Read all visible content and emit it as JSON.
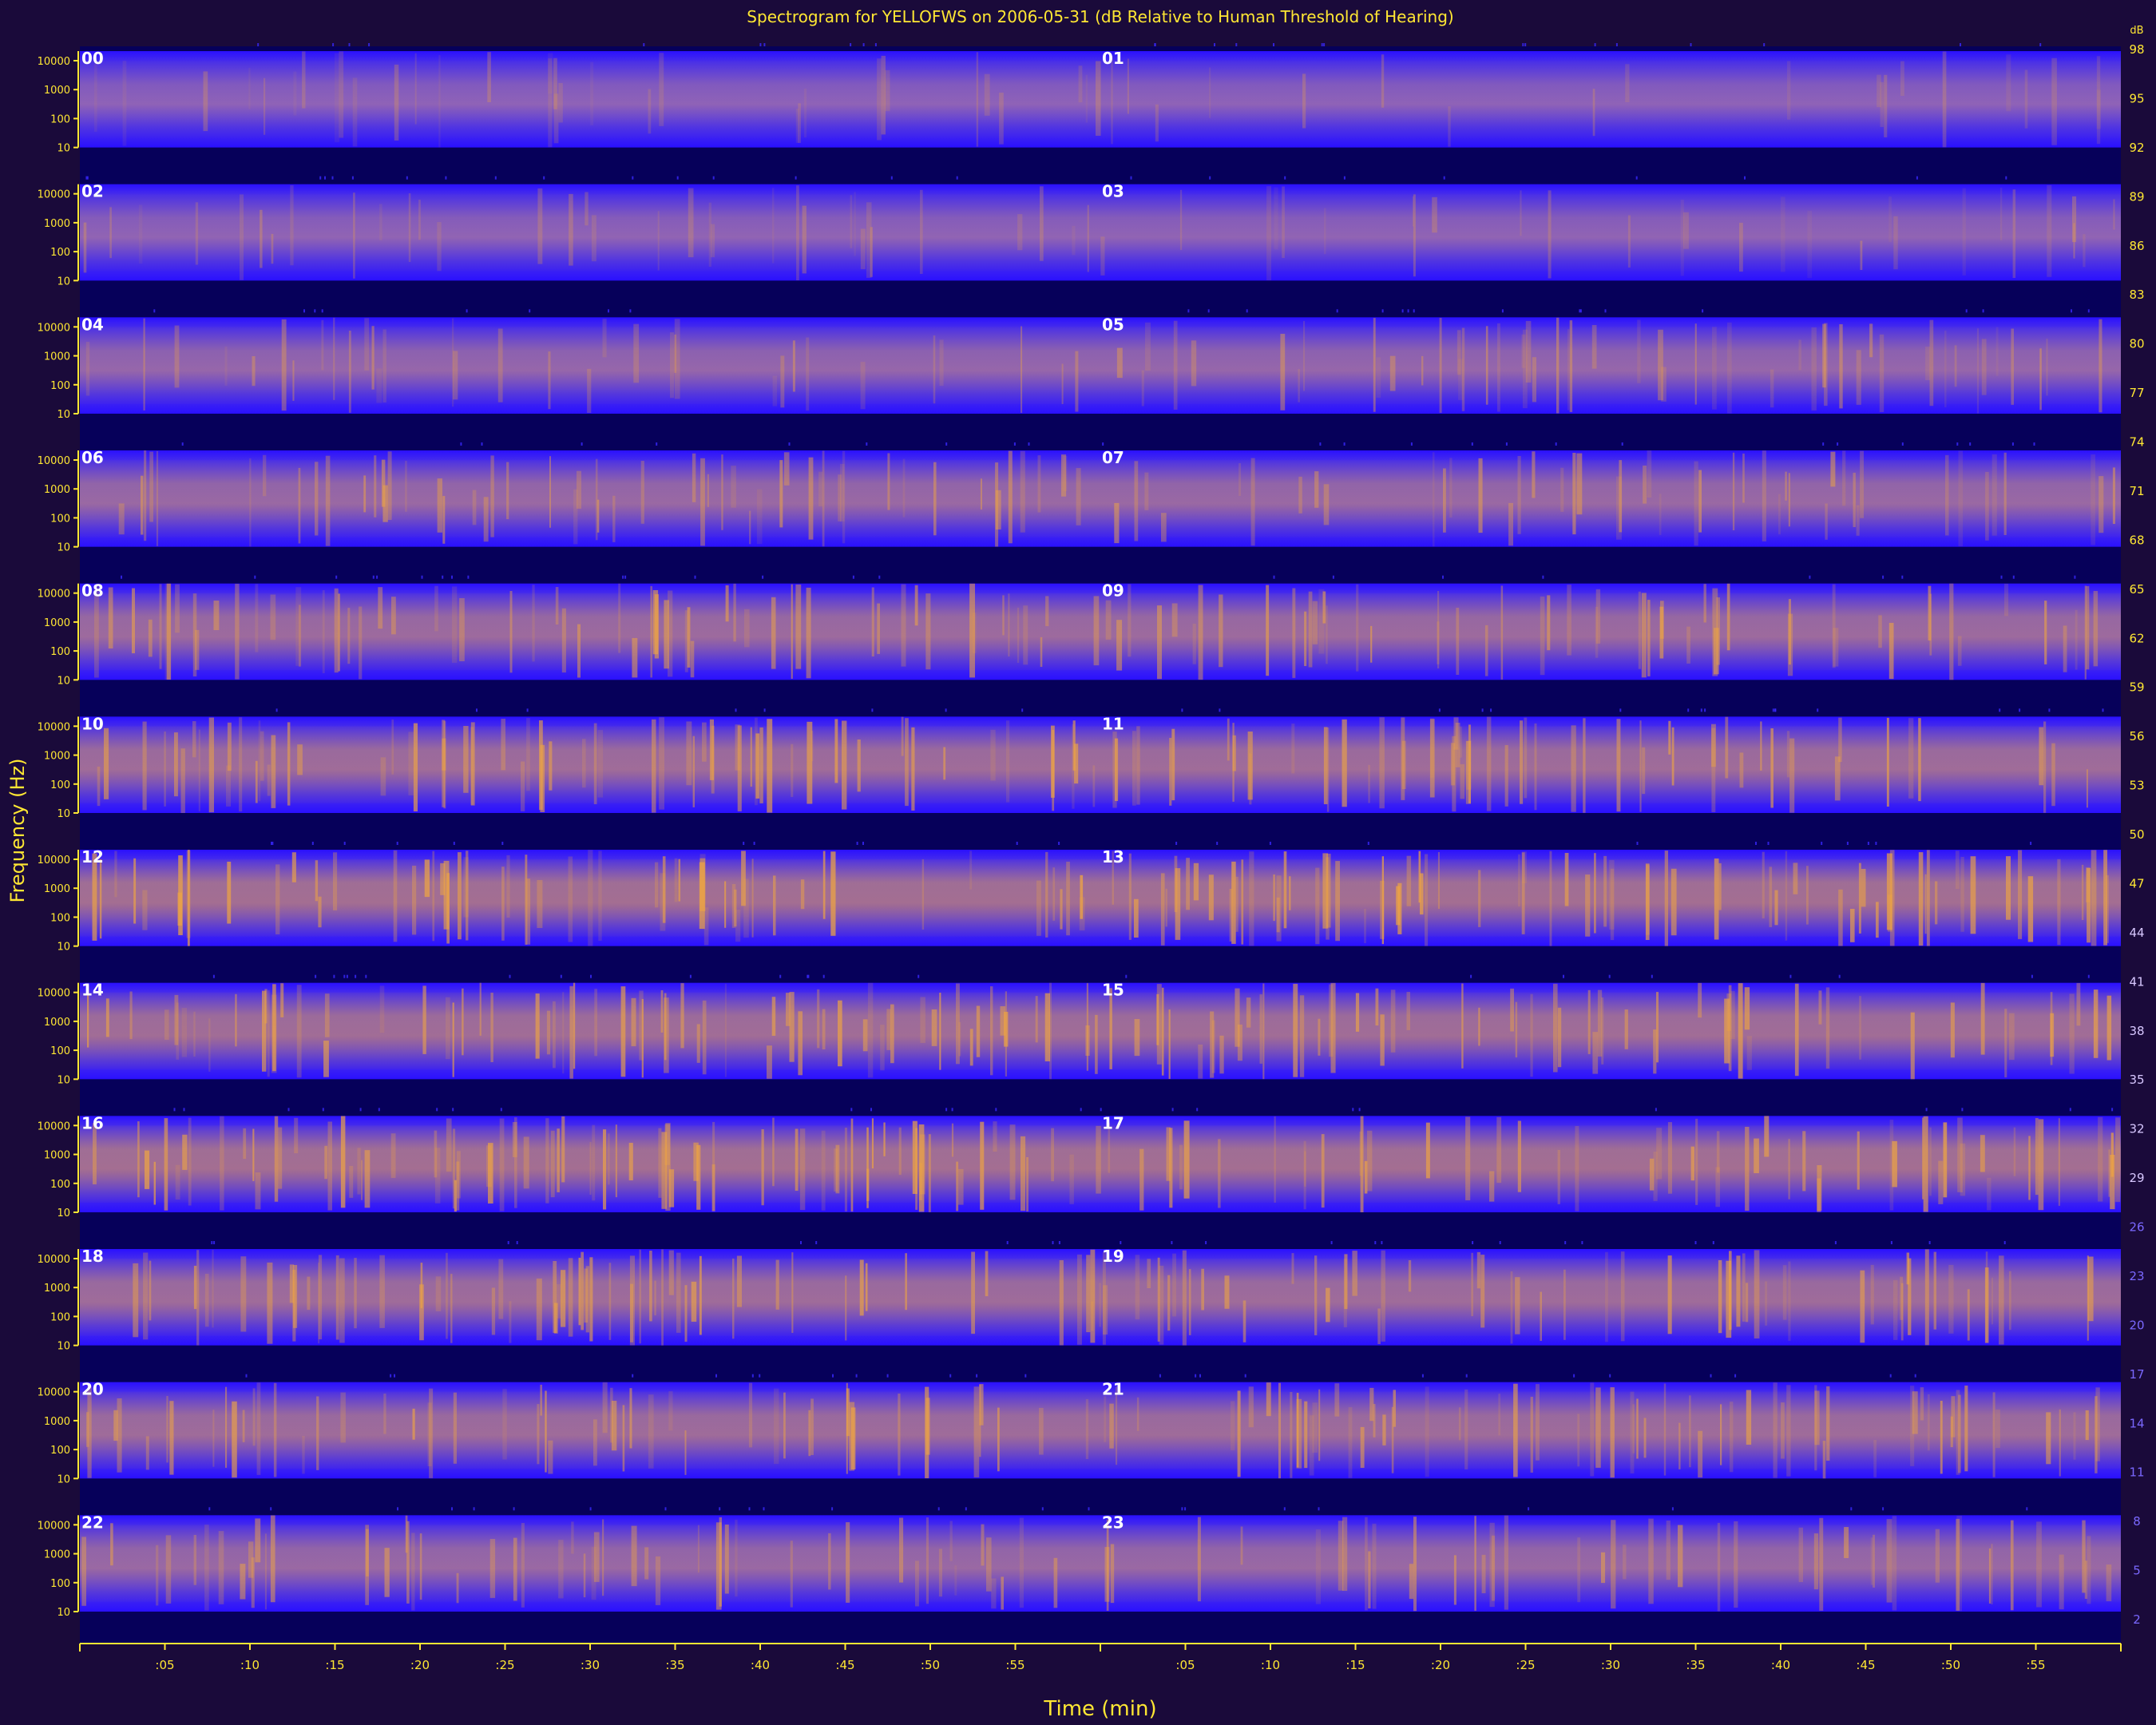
{
  "chart_data": {
    "type": "heatmap",
    "title": "Spectrogram for YELLOFWS on 2006-05-31 (dB Relative to Human Threshold of Hearing)",
    "xlabel": "Time (min)",
    "ylabel": "Frequency (Hz)",
    "x_ticks": [
      ":05",
      ":10",
      ":15",
      ":20",
      ":25",
      ":30",
      ":35",
      ":40",
      ":45",
      ":50",
      ":55"
    ],
    "y_ticks": [
      "10000",
      "1000",
      "100",
      "10"
    ],
    "hour_labels": [
      "00",
      "01",
      "02",
      "03",
      "04",
      "05",
      "06",
      "07",
      "08",
      "09",
      "10",
      "11",
      "12",
      "13",
      "14",
      "15",
      "16",
      "17",
      "18",
      "19",
      "20",
      "21",
      "22",
      "23"
    ],
    "row_intensity": [
      0.15,
      0.2,
      0.35,
      0.45,
      0.55,
      0.62,
      0.72,
      0.66,
      0.72,
      0.6,
      0.6,
      0.45
    ],
    "colorbar": {
      "ticks": [
        98,
        95,
        92,
        89,
        86,
        83,
        80,
        77,
        74,
        71,
        68,
        65,
        62,
        59,
        56,
        53,
        50,
        47,
        44,
        41,
        38,
        35,
        32,
        29,
        26,
        23,
        20,
        17,
        14,
        11,
        8,
        5,
        2
      ],
      "top_label": "dB",
      "min": 2,
      "max": 98
    },
    "colors": {
      "background": "#1a0a3a",
      "plot_background": "#06005a",
      "band_low": "#2a10ff",
      "band_mid": "#6a4ad8",
      "band_high": "#e39a3b",
      "axis": "#ffe733"
    }
  }
}
